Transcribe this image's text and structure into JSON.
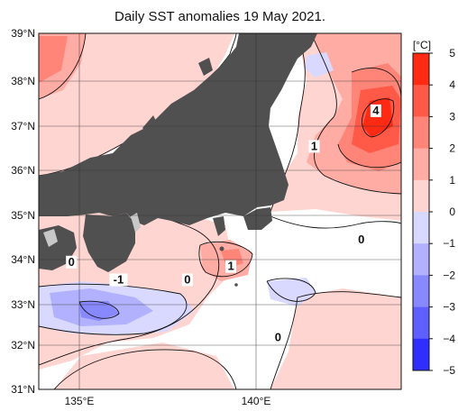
{
  "title": "Daily SST anomalies 19 May 2021.",
  "units": "[°C]",
  "map": {
    "lat_range": [
      31,
      39
    ],
    "lon_range": [
      134,
      144
    ],
    "lat_ticks": [
      "39°N",
      "38°N",
      "37°N",
      "36°N",
      "35°N",
      "34°N",
      "33°N",
      "32°N",
      "31°N"
    ],
    "lon_ticks": [
      "135°E",
      "140°E"
    ],
    "land_color": "#505050",
    "contour_labels": [
      {
        "text": "4",
        "lon": 143.3,
        "lat": 37.2
      },
      {
        "text": "1",
        "lon": 141.6,
        "lat": 36.4
      },
      {
        "text": "0",
        "lon": 142.9,
        "lat": 34.3
      },
      {
        "text": "0",
        "lon": 134.9,
        "lat": 33.8
      },
      {
        "text": "-1",
        "lon": 136.2,
        "lat": 33.4
      },
      {
        "text": "0",
        "lon": 138.1,
        "lat": 33.4
      },
      {
        "text": "1",
        "lon": 139.3,
        "lat": 33.7
      },
      {
        "text": "0",
        "lon": 140.6,
        "lat": 32.1
      }
    ]
  },
  "colorbar": {
    "min": -5,
    "max": 5,
    "labels": [
      "5",
      "4",
      "3",
      "2",
      "1",
      "0",
      "−1",
      "−2",
      "−3",
      "−4",
      "−5"
    ],
    "colors": [
      "#ff2a14",
      "#ff5a48",
      "#ff8578",
      "#ffaca4",
      "#ffd5d2",
      "#ffffff",
      "#d9d9ff",
      "#b1b1ff",
      "#8888ff",
      "#5f5fff",
      "#2e2eff"
    ]
  }
}
